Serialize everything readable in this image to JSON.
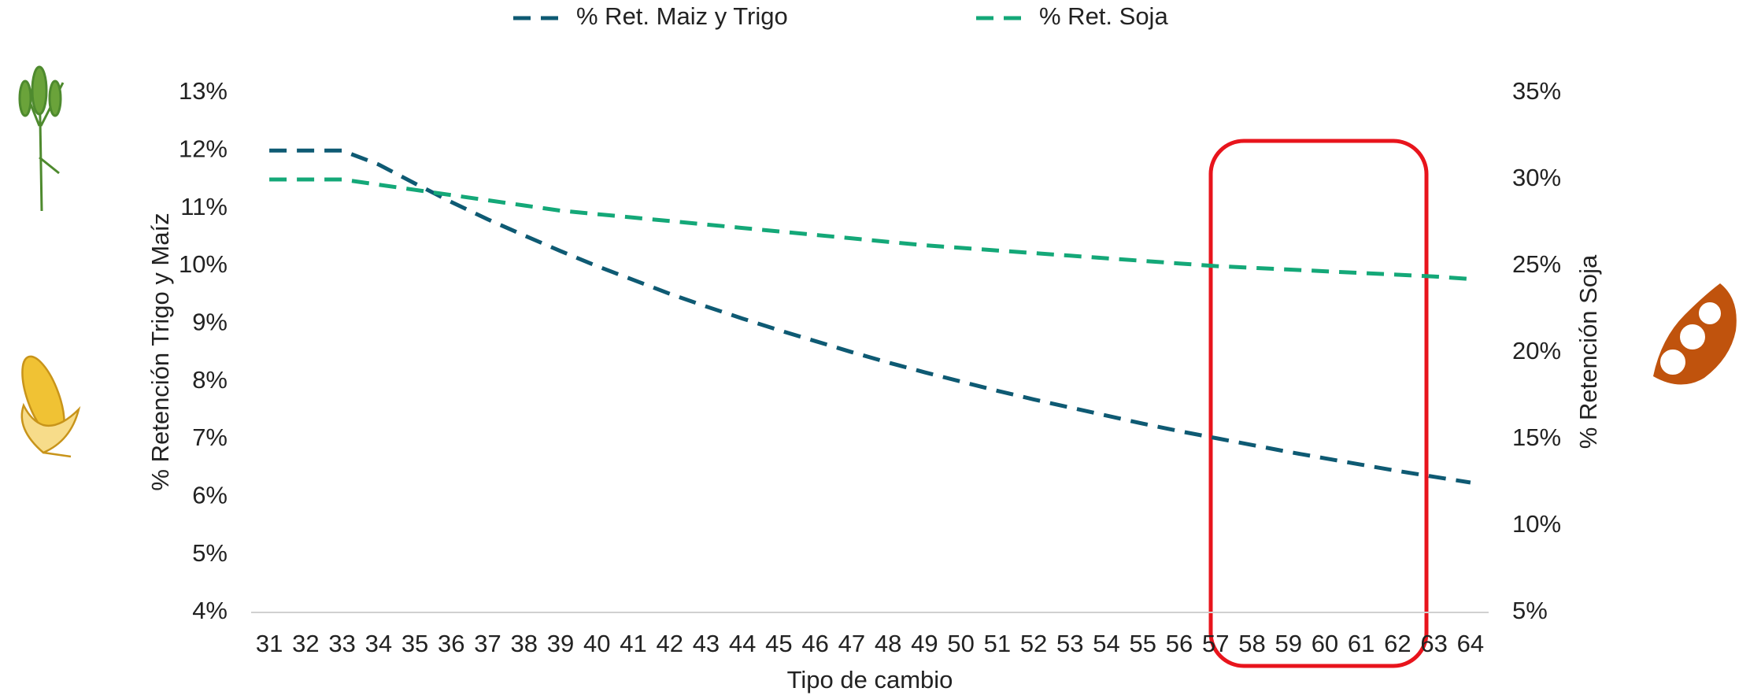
{
  "chart_data": {
    "type": "line",
    "x": [
      31,
      32,
      33,
      34,
      35,
      36,
      37,
      38,
      39,
      40,
      41,
      42,
      43,
      44,
      45,
      46,
      47,
      48,
      49,
      50,
      51,
      52,
      53,
      54,
      55,
      56,
      57,
      58,
      59,
      60,
      61,
      62,
      63,
      64
    ],
    "xlabel": "Tipo de cambio",
    "ylabel": "% Retención Trigo y Maíz",
    "y2label": "% Retención Soja",
    "series": [
      {
        "name": "% Ret. Maiz y Trigo",
        "color": "#0e5a73",
        "axis": "y",
        "values": [
          12,
          12,
          12,
          11.76,
          11.43,
          11.11,
          10.81,
          10.53,
          10.26,
          10,
          9.76,
          9.52,
          9.3,
          9.09,
          8.89,
          8.7,
          8.51,
          8.33,
          8.16,
          8,
          7.84,
          7.69,
          7.55,
          7.41,
          7.27,
          7.14,
          7.02,
          6.9,
          6.78,
          6.67,
          6.56,
          6.45,
          6.35,
          6.25
        ]
      },
      {
        "name": "% Ret. Soja",
        "color": "#14a878",
        "axis": "y2",
        "values": [
          30,
          30,
          30,
          29.7,
          29.4,
          29.1,
          28.8,
          28.5,
          28.2,
          28,
          27.8,
          27.6,
          27.4,
          27.2,
          27,
          26.8,
          26.6,
          26.4,
          26.2,
          26.05,
          25.9,
          25.75,
          25.6,
          25.45,
          25.3,
          25.15,
          25,
          24.9,
          24.8,
          24.7,
          24.6,
          24.5,
          24.4,
          24.25
        ]
      }
    ],
    "ylim": [
      4,
      13
    ],
    "yticks": [
      {
        "value": 4,
        "label": "4%"
      },
      {
        "value": 5,
        "label": "5%"
      },
      {
        "value": 6,
        "label": "6%"
      },
      {
        "value": 7,
        "label": "7%"
      },
      {
        "value": 8,
        "label": "8%"
      },
      {
        "value": 9,
        "label": "9%"
      },
      {
        "value": 10,
        "label": "10%"
      },
      {
        "value": 11,
        "label": "11%"
      },
      {
        "value": 12,
        "label": "12%"
      },
      {
        "value": 13,
        "label": "13%"
      }
    ],
    "y2lim": [
      5,
      35
    ],
    "y2ticks": [
      {
        "value": 5,
        "label": "5%"
      },
      {
        "value": 10,
        "label": "10%"
      },
      {
        "value": 15,
        "label": "15%"
      },
      {
        "value": 20,
        "label": "20%"
      },
      {
        "value": 25,
        "label": "25%"
      },
      {
        "value": 30,
        "label": "30%"
      },
      {
        "value": 35,
        "label": "35%"
      }
    ],
    "grid": false,
    "legend": "top"
  }
}
